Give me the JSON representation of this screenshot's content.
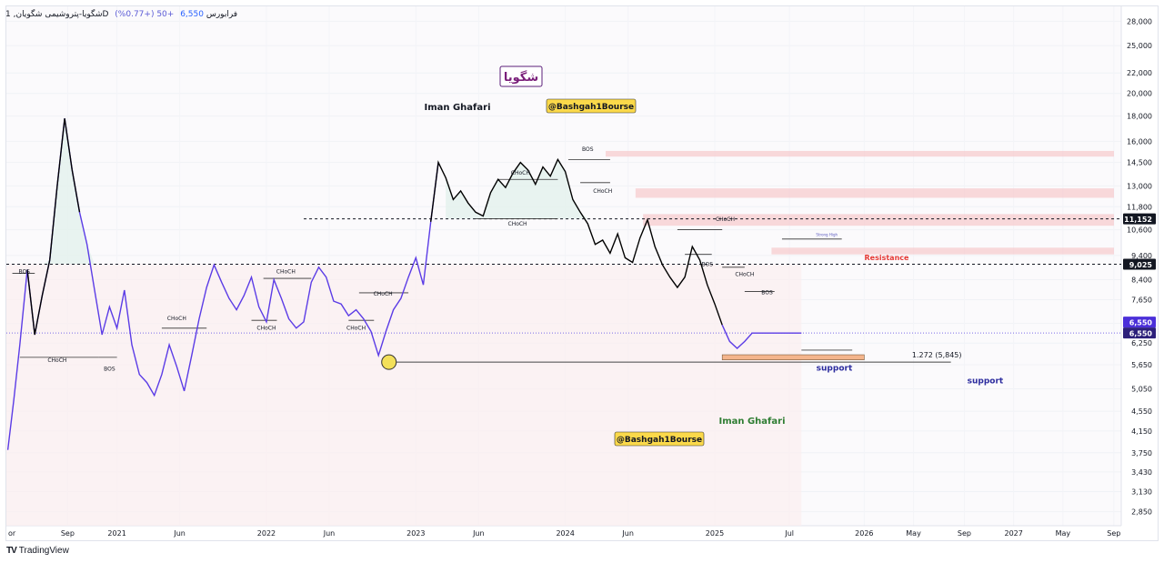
{
  "header": {
    "symbol_line": "شگویا-پتروشیمی شگویان, 1D فرابورس",
    "price": "6,550",
    "change": "+50 (+0.77%)"
  },
  "branding": {
    "logo_text": "TradingView"
  },
  "watermarks": {
    "symbol_box": "شگویا",
    "author_top": "Iman Ghafari",
    "channel_top": "@Bashgah1Bourse",
    "author_bottom": "Iman Ghafari",
    "channel_bottom": "@Bashgah1Bourse"
  },
  "colors": {
    "price_line_past": "#5b3ce6",
    "price_line_recent": "#000000",
    "zone_fill": "#f7c9cc",
    "support_zone": "#f4b58c",
    "badge_fill": "#fbd94a",
    "marker_fill": "#f3e05a",
    "current_price_tag": "#4b2fd9",
    "resistance_text": "#e53935",
    "support_text": "#2b2b9e",
    "author_bottom_text": "#2e7d32"
  },
  "chart_data": {
    "type": "line",
    "scale": "log",
    "ylim": [
      2750,
      29500
    ],
    "y_ticks": [
      28000,
      25000,
      22000,
      20000,
      18000,
      16000,
      14500,
      13000,
      11800,
      10600,
      9400,
      8400,
      7650,
      6850,
      6250,
      5650,
      5050,
      4550,
      4150,
      3750,
      3430,
      3130,
      2850
    ],
    "x_ticks": [
      "Apr",
      "Sep",
      "2021",
      "Jun",
      "2022",
      "Jun",
      "2023",
      "Jun",
      "2024",
      "Jun",
      "2025",
      "Jul",
      "2026",
      "May",
      "Sep",
      "2027",
      "May",
      "Sep"
    ],
    "x_tick_labels": [
      "or",
      "Sep",
      "2021",
      "Jun",
      "2022",
      "Jun",
      "2023",
      "Jun",
      "2024",
      "Jun",
      "2025",
      "Jul",
      "2026",
      "May",
      "Sep",
      "2027",
      "May",
      "Sep"
    ],
    "series": [
      {
        "x": [
          2020.27,
          2020.31,
          2020.35,
          2020.4,
          2020.45,
          2020.5,
          2020.55,
          2020.6,
          2020.65,
          2020.7,
          2020.75,
          2020.8,
          2020.85,
          2020.9,
          2020.95,
          2021.0,
          2021.05,
          2021.1,
          2021.15,
          2021.2,
          2021.25,
          2021.3,
          2021.35,
          2021.4,
          2021.45,
          2021.5,
          2021.55,
          2021.6,
          2021.65,
          2021.7,
          2021.75,
          2021.8,
          2021.85,
          2021.9,
          2021.95,
          2022.0,
          2022.05,
          2022.1,
          2022.15,
          2022.2,
          2022.25,
          2022.3,
          2022.35,
          2022.4,
          2022.45,
          2022.5,
          2022.55,
          2022.6,
          2022.65,
          2022.7,
          2022.75,
          2022.8,
          2022.85,
          2022.9,
          2022.95,
          2023.0,
          2023.05,
          2023.1,
          2023.15,
          2023.2,
          2023.25,
          2023.3,
          2023.35,
          2023.4,
          2023.45,
          2023.5,
          2023.55,
          2023.6,
          2023.65,
          2023.7,
          2023.75,
          2023.8,
          2023.85,
          2023.9,
          2023.95,
          2024.0,
          2024.05,
          2024.1,
          2024.15,
          2024.2,
          2024.25,
          2024.3,
          2024.35,
          2024.4,
          2024.45,
          2024.5,
          2024.55,
          2024.6,
          2024.65,
          2024.7,
          2024.75,
          2024.8,
          2024.85,
          2024.9,
          2024.95,
          2025.0,
          2025.05,
          2025.1,
          2025.15,
          2025.2,
          2025.25,
          2025.3,
          2025.35,
          2025.4,
          2025.45,
          2025.5,
          2025.55,
          2025.58,
          2025.62,
          2025.66
        ],
        "values": [
          3800,
          4800,
          6200,
          8800,
          6500,
          7800,
          9200,
          13000,
          17800,
          14000,
          11500,
          9900,
          8000,
          6500,
          7400,
          6700,
          8000,
          6200,
          5400,
          5200,
          4900,
          5400,
          6200,
          5600,
          5000,
          5900,
          7000,
          8100,
          9000,
          8300,
          7700,
          7300,
          7800,
          8500,
          7400,
          6900,
          8400,
          7700,
          7000,
          6700,
          6900,
          8300,
          8900,
          8500,
          7600,
          7500,
          7100,
          7300,
          7000,
          6600,
          5900,
          6600,
          7300,
          7700,
          8500,
          9300,
          8200,
          11000,
          14500,
          13500,
          12200,
          12700,
          12000,
          11500,
          11300,
          12600,
          13400,
          12900,
          13800,
          14500,
          14000,
          13100,
          14200,
          13600,
          14700,
          13900,
          12200,
          11500,
          10900,
          9900,
          10100,
          9500,
          10400,
          9300,
          9100,
          10200,
          11100,
          9800,
          9000,
          8500,
          8100,
          8500,
          9800,
          9200,
          8200,
          7500,
          6800,
          6300,
          6100,
          6300,
          6550,
          6550,
          6550,
          6550,
          6550,
          6550,
          6550,
          6550,
          6550,
          6550
        ]
      }
    ],
    "annotations": [
      {
        "text": "BOS",
        "x": 2020.38,
        "y": 8650
      },
      {
        "text": "CHoCH",
        "x": 2020.6,
        "y": 5720
      },
      {
        "text": "BOS",
        "x": 2020.95,
        "y": 5500
      },
      {
        "text": "CHoCH",
        "x": 2021.4,
        "y": 6950
      },
      {
        "text": "CHoCH",
        "x": 2022.13,
        "y": 8650
      },
      {
        "text": "CHoCH",
        "x": 2022.0,
        "y": 6650
      },
      {
        "text": "CHoCH",
        "x": 2022.78,
        "y": 7800
      },
      {
        "text": "CHoCH",
        "x": 2022.6,
        "y": 6650
      },
      {
        "text": "CHoCH",
        "x": 2023.7,
        "y": 13700
      },
      {
        "text": "CHoCH",
        "x": 2023.68,
        "y": 10800
      },
      {
        "text": "BOS",
        "x": 2024.15,
        "y": 15300
      },
      {
        "text": "CHoCH",
        "x": 2024.25,
        "y": 12600
      },
      {
        "text": "CHoCH",
        "x": 2025.07,
        "y": 11050
      },
      {
        "text": "BOS",
        "x": 2024.95,
        "y": 8950
      },
      {
        "text": "CHoCH",
        "x": 2025.2,
        "y": 8550
      },
      {
        "text": "BOS",
        "x": 2025.35,
        "y": 7850
      },
      {
        "text": "Strong High",
        "x": 2025.75,
        "y": 10300
      },
      {
        "text": "Resistance",
        "x": 2026.15,
        "y": 9200
      },
      {
        "text": "1.272 (5,845)",
        "x": 2026.32,
        "y": 5845
      },
      {
        "text": "support",
        "x": 2025.8,
        "y": 5500
      },
      {
        "text": "support",
        "x": 2026.81,
        "y": 5180
      }
    ],
    "reference_levels": [
      {
        "label": "11,152",
        "value": 11152
      },
      {
        "label": "9,025",
        "value": 9025
      },
      {
        "label": "6,550",
        "value": 6550
      },
      {
        "label": "6,550",
        "value": 6550
      }
    ],
    "zones": [
      {
        "from": 14900,
        "to": 15300
      },
      {
        "from": 12300,
        "to": 12850
      },
      {
        "from": 10800,
        "to": 11400
      },
      {
        "from": 9450,
        "to": 9750
      }
    ],
    "support_zone": {
      "from": 5780,
      "to": 5920
    },
    "fib_level": 5845,
    "grid": true
  }
}
